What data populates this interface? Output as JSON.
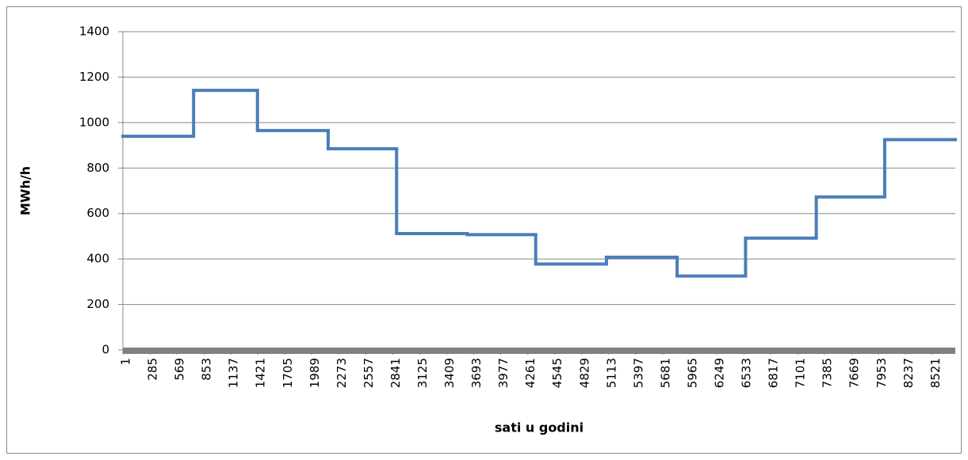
{
  "chart_data": {
    "type": "step",
    "x_label": "sati u godini",
    "y_label": "MWh/h",
    "x": [
      1,
      745,
      1417,
      2161,
      2881,
      3625,
      4345,
      5089,
      5833,
      6553,
      7297,
      8017
    ],
    "values": [
      940,
      1142,
      965,
      885,
      512,
      507,
      378,
      408,
      325,
      492,
      673,
      925
    ],
    "color": "#4a7ebb",
    "xlim": [
      1,
      8760
    ],
    "xticks": [
      1,
      285,
      569,
      853,
      1137,
      1421,
      1705,
      1989,
      2273,
      2557,
      2841,
      3125,
      3409,
      3693,
      3977,
      4261,
      4545,
      4829,
      5113,
      5397,
      5681,
      5965,
      6249,
      6533,
      6817,
      7101,
      7385,
      7669,
      7953,
      8237,
      8521
    ],
    "ylim": [
      0,
      1400
    ],
    "yticks": [
      0,
      200,
      400,
      600,
      800,
      1000,
      1200,
      1400
    ],
    "grid": true
  }
}
